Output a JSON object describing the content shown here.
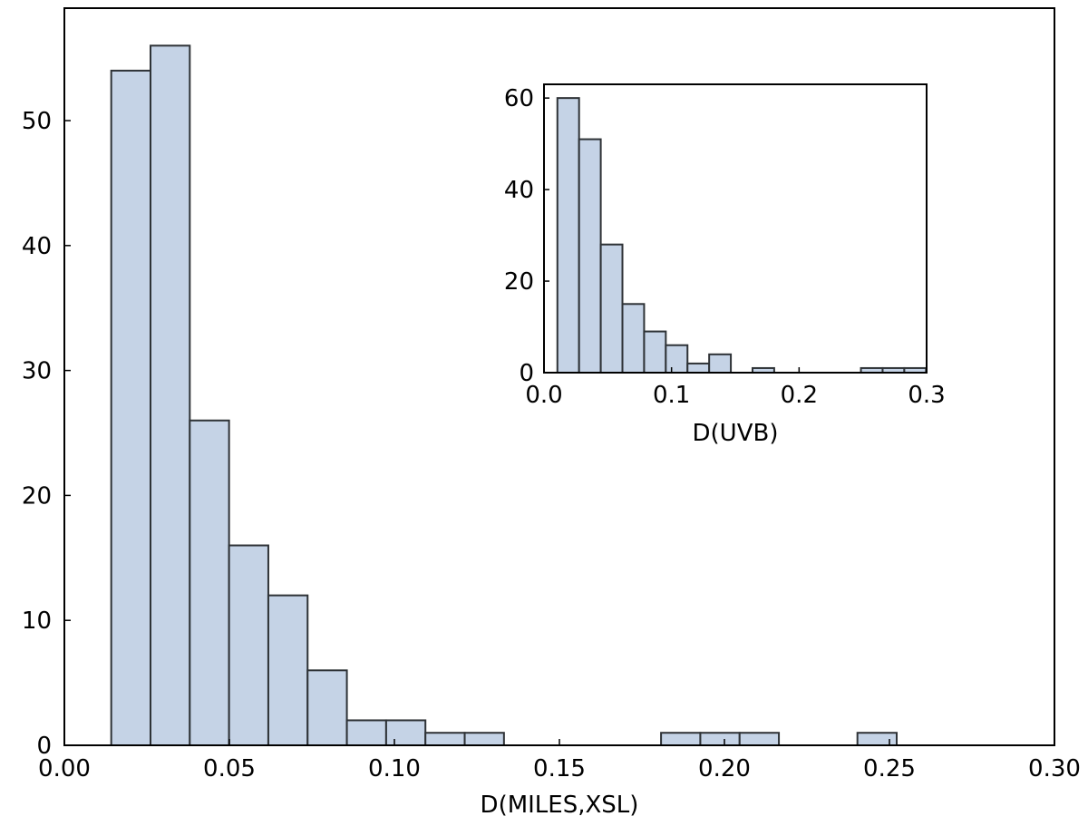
{
  "chart_data": [
    {
      "type": "histogram",
      "xlabel": "D(MILES,XSL)",
      "ylabel": "",
      "xlim": [
        0.0,
        0.3
      ],
      "ylim": [
        0,
        59
      ],
      "xticks": [
        0.0,
        0.05,
        0.1,
        0.15,
        0.2,
        0.25,
        0.3
      ],
      "xtick_labels": [
        "0.00",
        "0.05",
        "0.10",
        "0.15",
        "0.20",
        "0.25",
        "0.30"
      ],
      "yticks": [
        0,
        10,
        20,
        30,
        40,
        50
      ],
      "ytick_labels": [
        "0",
        "10",
        "20",
        "30",
        "40",
        "50"
      ],
      "bins": [
        {
          "x0": 0.0142,
          "x1": 0.0261,
          "count": 54
        },
        {
          "x0": 0.0261,
          "x1": 0.038,
          "count": 56
        },
        {
          "x0": 0.038,
          "x1": 0.0499,
          "count": 26
        },
        {
          "x0": 0.0499,
          "x1": 0.0618,
          "count": 16
        },
        {
          "x0": 0.0618,
          "x1": 0.0737,
          "count": 12
        },
        {
          "x0": 0.0737,
          "x1": 0.0856,
          "count": 6
        },
        {
          "x0": 0.0856,
          "x1": 0.0975,
          "count": 2
        },
        {
          "x0": 0.0975,
          "x1": 0.1094,
          "count": 2
        },
        {
          "x0": 0.1094,
          "x1": 0.1213,
          "count": 1
        },
        {
          "x0": 0.1213,
          "x1": 0.1332,
          "count": 1
        },
        {
          "x0": 0.1808,
          "x1": 0.1927,
          "count": 1
        },
        {
          "x0": 0.1927,
          "x1": 0.2046,
          "count": 1
        },
        {
          "x0": 0.2046,
          "x1": 0.2165,
          "count": 1
        },
        {
          "x0": 0.2403,
          "x1": 0.2522,
          "count": 1
        }
      ],
      "bar_color": "#c5d3e6",
      "edge_color": "#2e3236",
      "grid": false
    },
    {
      "type": "histogram",
      "role": "inset",
      "xlabel": "D(UVB)",
      "ylabel": "",
      "xlim": [
        0.0,
        0.3
      ],
      "ylim": [
        0,
        63
      ],
      "xticks": [
        0.0,
        0.1,
        0.2,
        0.3
      ],
      "xtick_labels": [
        "0.0",
        "0.1",
        "0.2",
        "0.3"
      ],
      "yticks": [
        0,
        20,
        40,
        60
      ],
      "ytick_labels": [
        "0",
        "20",
        "40",
        "60"
      ],
      "bins": [
        {
          "x0": 0.0105,
          "x1": 0.0275,
          "count": 60
        },
        {
          "x0": 0.0275,
          "x1": 0.0445,
          "count": 51
        },
        {
          "x0": 0.0445,
          "x1": 0.0615,
          "count": 28
        },
        {
          "x0": 0.0615,
          "x1": 0.0785,
          "count": 15
        },
        {
          "x0": 0.0785,
          "x1": 0.0955,
          "count": 9
        },
        {
          "x0": 0.0955,
          "x1": 0.1125,
          "count": 6
        },
        {
          "x0": 0.1125,
          "x1": 0.1295,
          "count": 2
        },
        {
          "x0": 0.1295,
          "x1": 0.1465,
          "count": 4
        },
        {
          "x0": 0.1635,
          "x1": 0.1805,
          "count": 1
        },
        {
          "x0": 0.2485,
          "x1": 0.2655,
          "count": 1
        },
        {
          "x0": 0.2655,
          "x1": 0.2825,
          "count": 1
        },
        {
          "x0": 0.2825,
          "x1": 0.2995,
          "count": 1
        }
      ],
      "bar_color": "#c5d3e6",
      "edge_color": "#2e3236",
      "grid": false
    }
  ]
}
